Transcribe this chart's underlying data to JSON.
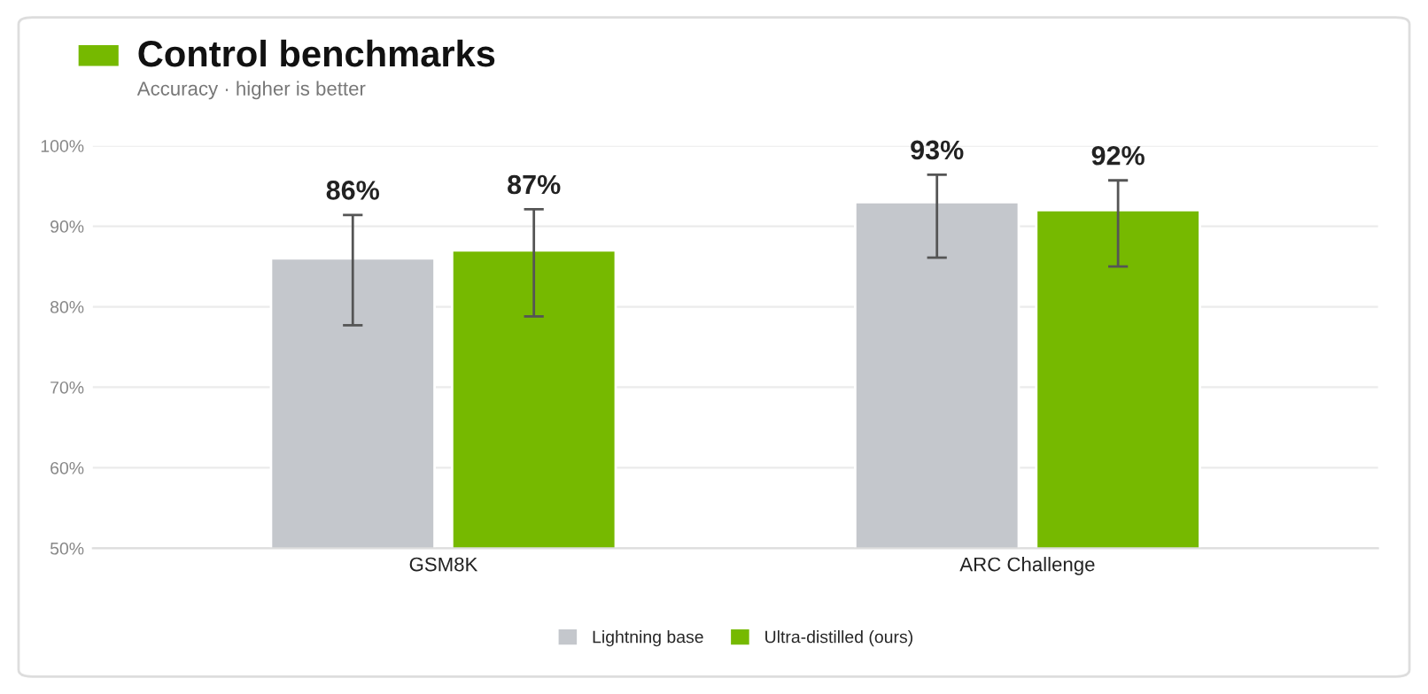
{
  "chart_data": {
    "type": "bar",
    "title": "Control benchmarks",
    "subtitle": "Accuracy · higher is better",
    "categories": [
      "GSM8K",
      "ARC Challenge"
    ],
    "series": [
      {
        "name": "Lightning base",
        "color": "#c4c7cc",
        "values": [
          86,
          93
        ],
        "value_labels": [
          "86%",
          "93%"
        ],
        "errors": [
          [
            77.7,
            91.4
          ],
          [
            86.1,
            96.4
          ]
        ]
      },
      {
        "name": "Ultra-distilled (ours)",
        "color": "#76b900",
        "values": [
          87,
          92
        ],
        "value_labels": [
          "87%",
          "92%"
        ],
        "errors": [
          [
            78.8,
            92.1
          ],
          [
            85.0,
            95.7
          ]
        ]
      }
    ],
    "ylim": [
      50,
      100
    ],
    "yticks": [
      {
        "value": 50,
        "label": "50%"
      },
      {
        "value": 60,
        "label": "60%"
      },
      {
        "value": 70,
        "label": "70%"
      },
      {
        "value": 80,
        "label": "80%"
      },
      {
        "value": 90,
        "label": "90%"
      },
      {
        "value": 100,
        "label": "100%"
      }
    ],
    "grid": "y",
    "legend": "bottom"
  }
}
